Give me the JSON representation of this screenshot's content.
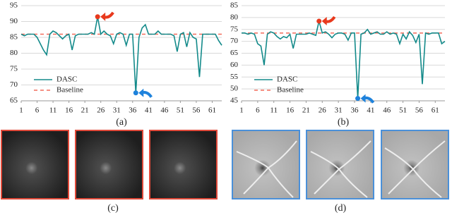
{
  "chart_data": [
    {
      "type": "line",
      "caption": "(a)",
      "xlim": [
        1,
        64
      ],
      "xticks": [
        1,
        6,
        11,
        16,
        21,
        26,
        31,
        36,
        41,
        46,
        51,
        56,
        61
      ],
      "ylim": [
        65,
        95
      ],
      "yticks": [
        65,
        70,
        75,
        80,
        85,
        90,
        95
      ],
      "grid": true,
      "legend": "lower-left",
      "x": [
        1,
        2,
        3,
        4,
        5,
        6,
        7,
        8,
        9,
        10,
        11,
        12,
        13,
        14,
        15,
        16,
        17,
        18,
        19,
        20,
        21,
        22,
        23,
        24,
        25,
        26,
        27,
        28,
        29,
        30,
        31,
        32,
        33,
        34,
        35,
        36,
        37,
        38,
        39,
        40,
        41,
        42,
        43,
        44,
        45,
        46,
        47,
        48,
        49,
        50,
        51,
        52,
        53,
        54,
        55,
        56,
        57,
        58,
        59,
        60,
        61,
        62,
        63,
        64
      ],
      "series": [
        {
          "name": "DASC",
          "color": "#138a8a",
          "values": [
            86,
            85.5,
            86,
            86,
            86,
            85,
            83,
            81,
            79.5,
            86,
            87,
            86.5,
            85.5,
            84.5,
            85.5,
            86,
            81,
            85.5,
            86,
            86,
            86,
            86,
            86.5,
            86,
            91.5,
            86,
            87,
            86,
            85.5,
            83,
            86,
            86.5,
            86,
            82.5,
            86,
            86,
            67.5,
            85,
            88,
            89,
            86,
            86,
            86,
            87,
            86,
            86,
            86,
            86,
            85.5,
            80.5,
            86,
            86.5,
            82,
            86.5,
            85,
            84.5,
            72.5,
            86,
            86,
            86,
            86,
            86,
            84,
            82.5
          ]
        }
      ],
      "baseline": {
        "name": "Baseline",
        "value": 86,
        "color": "#f26b5b"
      },
      "highlight": {
        "max": "#e8391d",
        "min": "#1e82dc"
      }
    },
    {
      "type": "line",
      "caption": "(b)",
      "xlim": [
        1,
        64
      ],
      "xticks": [
        1,
        6,
        11,
        16,
        21,
        26,
        31,
        36,
        41,
        46,
        51,
        56,
        61
      ],
      "ylim": [
        45,
        85
      ],
      "yticks": [
        45,
        50,
        55,
        60,
        65,
        70,
        75,
        80,
        85
      ],
      "grid": true,
      "legend": "lower-left",
      "x": [
        1,
        2,
        3,
        4,
        5,
        6,
        7,
        8,
        9,
        10,
        11,
        12,
        13,
        14,
        15,
        16,
        17,
        18,
        19,
        20,
        21,
        22,
        23,
        24,
        25,
        26,
        27,
        28,
        29,
        30,
        31,
        32,
        33,
        34,
        35,
        36,
        37,
        38,
        39,
        40,
        41,
        42,
        43,
        44,
        45,
        46,
        47,
        48,
        49,
        50,
        51,
        52,
        53,
        54,
        55,
        56,
        57,
        58,
        59,
        60,
        61,
        62,
        63,
        64
      ],
      "series": [
        {
          "name": "DASC",
          "color": "#138a8a",
          "values": [
            73.5,
            73.5,
            73,
            73.5,
            73,
            69,
            68,
            60,
            73,
            74,
            73.5,
            72,
            71,
            72,
            71.5,
            73,
            67,
            73,
            73,
            73,
            73,
            73.5,
            73,
            72.5,
            78.5,
            73.5,
            74,
            73,
            71.5,
            73,
            73.5,
            73.5,
            73,
            70.5,
            73.5,
            73.5,
            46,
            73,
            73.5,
            75,
            73,
            73.5,
            74,
            73,
            73,
            74,
            73,
            73.5,
            73,
            69,
            73,
            71,
            74,
            72.5,
            69.5,
            73,
            52,
            73.5,
            73,
            73.5,
            73.5,
            73.5,
            69,
            70
          ]
        }
      ],
      "baseline": {
        "name": "Baseline",
        "value": 73.5,
        "color": "#f26b5b"
      },
      "highlight": {
        "max": "#e8391d",
        "min": "#1e82dc"
      }
    }
  ],
  "image_captions": [
    "(c)",
    "(d)"
  ]
}
